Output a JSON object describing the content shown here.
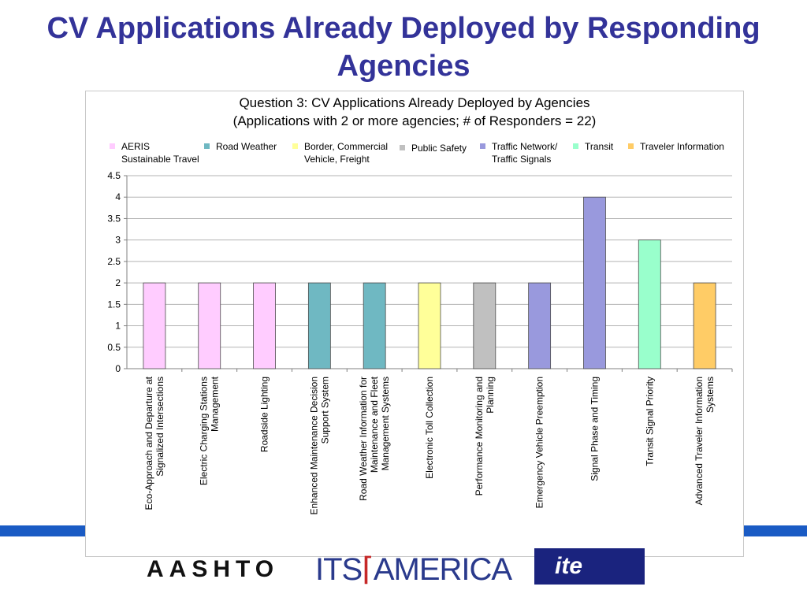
{
  "slide": {
    "title": "CV Applications Already Deployed by Responding Agencies",
    "band_color": "#1a5bc4"
  },
  "logos": {
    "aashto": "AASHTO",
    "its_left": "ITS",
    "its_right": "AMERICA",
    "ite": "ite"
  },
  "chart_data": {
    "type": "bar",
    "title": "Question 3: CV Applications Already Deployed by Agencies",
    "subtitle": "(Applications with 2 or more agencies; # of Responders = 22)",
    "xlabel": "",
    "ylabel": "",
    "ylim": [
      0,
      4.5
    ],
    "yticks": [
      "4.5",
      "4",
      "3.5",
      "3",
      "2.5",
      "2",
      "1.5",
      "1",
      "0.5",
      "0"
    ],
    "grid": true,
    "legend_position": "top",
    "legend": [
      {
        "label": "AERIS Sustainable Travel",
        "color": "#ffccff"
      },
      {
        "label": "Road Weather",
        "color": "#6fb8c2"
      },
      {
        "label": "Border, Commercial Vehicle, Freight",
        "color": "#ffff99"
      },
      {
        "label": "Public Safety",
        "color": "#c0c0c0"
      },
      {
        "label": "Traffic Network/ Traffic Signals",
        "color": "#9999dd"
      },
      {
        "label": "Transit",
        "color": "#99ffcc"
      },
      {
        "label": "Traveler Information",
        "color": "#ffcc66"
      }
    ],
    "categories": [
      "Eco-Approach and Departure at Signalized Intersections",
      "Electric Charging Stations Management",
      "Roadside Lighting",
      "Enhanced Maintenance Decision Support System",
      "Road Weather Information for Maintenance and Fleet Management Systems",
      "Electronic Toll Collection",
      "Performance Monitoring and Planning",
      "Emergency Vehicle Preemption",
      "Signal Phase and Timing",
      "Transit Signal Priority",
      "Advanced Traveler Information Systems"
    ],
    "values": [
      2,
      2,
      2,
      2,
      2,
      2,
      2,
      2,
      4,
      3,
      2
    ],
    "bar_groups": [
      "AERIS Sustainable Travel",
      "AERIS Sustainable Travel",
      "AERIS Sustainable Travel",
      "Road Weather",
      "Road Weather",
      "Border, Commercial Vehicle, Freight",
      "Public Safety",
      "Traffic Network/ Traffic Signals",
      "Traffic Network/ Traffic Signals",
      "Transit",
      "Traveler Information"
    ]
  }
}
